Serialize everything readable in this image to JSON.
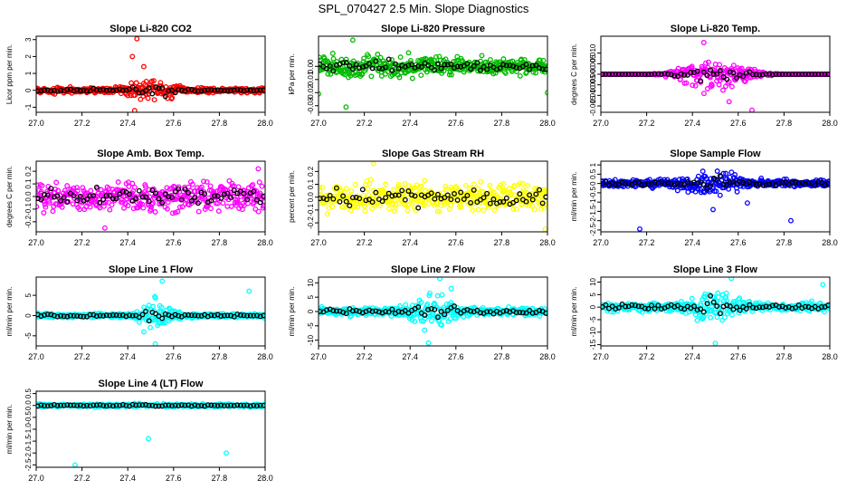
{
  "page": {
    "title": "SPL_070427  2.5 Min. Slope Diagnostics"
  },
  "chart_data": [
    {
      "type": "scatter",
      "title": "Slope Li-820 CO2",
      "ylabel": "Licor ppm per min.",
      "xlabel": "",
      "xlim": [
        27.0,
        28.0
      ],
      "xticks": [
        "27.0",
        "27.2",
        "27.4",
        "27.6",
        "27.8",
        "28.0"
      ],
      "ylim": [
        -1.3,
        3.2
      ],
      "yticks": [
        -1,
        0,
        1,
        2,
        3
      ],
      "ytick_labels": [
        "-1",
        "0",
        "1",
        "2",
        "3"
      ],
      "color": "#ff0000",
      "noise": 0.12,
      "burst": {
        "center": 27.5,
        "width": 0.1,
        "amp": 0.45
      },
      "outliers": [
        {
          "x": 27.44,
          "y": 3.05
        },
        {
          "x": 27.42,
          "y": 2.0
        },
        {
          "x": 27.43,
          "y": -1.2
        },
        {
          "x": 27.47,
          "y": 1.4
        }
      ]
    },
    {
      "type": "scatter",
      "title": "Slope Li-820 Pressure",
      "ylabel": "kPa per min.",
      "xlabel": "",
      "xlim": [
        27.0,
        28.0
      ],
      "xticks": [
        "27.0",
        "27.2",
        "27.4",
        "27.6",
        "27.8",
        "28.0"
      ],
      "ylim": [
        -0.035,
        0.023
      ],
      "yticks": [
        -0.03,
        -0.02,
        -0.01,
        0.0
      ],
      "ytick_labels": [
        "-0.03",
        "-0.02",
        "-0.01",
        "0.00"
      ],
      "color": "#00bb00",
      "noise": 0.004,
      "burst": {
        "center": 27.3,
        "width": 0.3,
        "amp": 0.003
      },
      "outliers": [
        {
          "x": 27.12,
          "y": -0.031
        },
        {
          "x": 27.0,
          "y": -0.021
        },
        {
          "x": 28.0,
          "y": -0.02
        },
        {
          "x": 27.15,
          "y": 0.02
        }
      ]
    },
    {
      "type": "scatter",
      "title": "Slope Li-820 Temp.",
      "ylabel": "degrees C per min.",
      "xlabel": "",
      "xlim": [
        27.0,
        28.0
      ],
      "xticks": [
        "27.0",
        "27.2",
        "27.4",
        "27.6",
        "27.8",
        "28.0"
      ],
      "ylim": [
        -0.018,
        0.018
      ],
      "yticks": [
        -0.015,
        -0.01,
        -0.005,
        0.0,
        0.005,
        0.01
      ],
      "ytick_labels": [
        "-0.015",
        "-0.010",
        "-0.005",
        "0.000",
        "0.005",
        "0.010"
      ],
      "color": "#ff00ff",
      "noise": 0.0,
      "burst": {
        "center": 27.5,
        "width": 0.15,
        "amp": 0.0065
      },
      "outliers": [
        {
          "x": 27.56,
          "y": -0.013
        },
        {
          "x": 27.66,
          "y": -0.017
        },
        {
          "x": 27.45,
          "y": 0.015
        }
      ]
    },
    {
      "type": "scatter",
      "title": "Slope Amb. Box Temp.",
      "ylabel": "degrees C per min.",
      "xlabel": "",
      "xlim": [
        27.0,
        28.0
      ],
      "xticks": [
        "27.0",
        "27.2",
        "27.4",
        "27.6",
        "27.8",
        "28.0"
      ],
      "ylim": [
        -0.28,
        0.28
      ],
      "yticks": [
        -0.2,
        -0.1,
        0.0,
        0.1,
        0.2
      ],
      "ytick_labels": [
        "-0.2",
        "-0.1",
        "0.0",
        "0.1",
        "0.2"
      ],
      "color": "#ff00ff",
      "noise": 0.09,
      "burst": {
        "center": 27.5,
        "width": 0.2,
        "amp": 0.0
      },
      "outliers": [
        {
          "x": 27.3,
          "y": -0.25
        },
        {
          "x": 27.97,
          "y": 0.22
        }
      ]
    },
    {
      "type": "scatter",
      "title": "Slope Gas Stream RH",
      "ylabel": "percent per min.",
      "xlabel": "",
      "xlim": [
        27.0,
        28.0
      ],
      "xticks": [
        "27.0",
        "27.2",
        "27.4",
        "27.6",
        "27.8",
        "28.0"
      ],
      "ylim": [
        -0.27,
        0.28
      ],
      "yticks": [
        -0.2,
        -0.1,
        0.0,
        0.1,
        0.2
      ],
      "ytick_labels": [
        "-0.2",
        "-0.1",
        "0.0",
        "0.1",
        "0.2"
      ],
      "color": "#ffff00",
      "noise": 0.09,
      "burst": {
        "center": 27.5,
        "width": 0.2,
        "amp": 0.0
      },
      "outliers": [
        {
          "x": 27.24,
          "y": 0.26
        },
        {
          "x": 27.99,
          "y": -0.25
        }
      ]
    },
    {
      "type": "scatter",
      "title": "Slope Sample Flow",
      "ylabel": "ml/min per min.",
      "xlabel": "",
      "xlim": [
        27.0,
        28.0
      ],
      "xticks": [
        "27.0",
        "27.2",
        "27.4",
        "27.6",
        "27.8",
        "28.0"
      ],
      "ylim": [
        -2.6,
        1.2
      ],
      "yticks": [
        -2.5,
        -2,
        -1.5,
        -1,
        -0.5,
        0,
        0.5,
        1
      ],
      "ytick_labels": [
        "-2.5",
        "-2",
        "-1.5",
        "-1",
        "-0.5",
        "0",
        "0.5",
        "1"
      ],
      "color": "#0000ff",
      "noise": 0.15,
      "burst": {
        "center": 27.5,
        "width": 0.12,
        "amp": 0.45
      },
      "outliers": [
        {
          "x": 27.17,
          "y": -2.45
        },
        {
          "x": 27.83,
          "y": -2.0
        },
        {
          "x": 27.49,
          "y": -1.4
        },
        {
          "x": 27.64,
          "y": -1.05
        }
      ]
    },
    {
      "type": "scatter",
      "title": "Slope Line 1 Flow",
      "ylabel": "ml/min per min.",
      "xlabel": "",
      "xlim": [
        27.0,
        28.0
      ],
      "xticks": [
        "27.0",
        "27.2",
        "27.4",
        "27.6",
        "27.8",
        "28.0"
      ],
      "ylim": [
        -7.5,
        9.5
      ],
      "yticks": [
        -5,
        0,
        5
      ],
      "ytick_labels": [
        "-5",
        "0",
        "5"
      ],
      "color": "#00ffff",
      "noise": 0.4,
      "burst": {
        "center": 27.53,
        "width": 0.06,
        "amp": 3.5
      },
      "outliers": [
        {
          "x": 27.55,
          "y": 8.5
        },
        {
          "x": 27.52,
          "y": -7.0
        },
        {
          "x": 27.93,
          "y": 6.0
        },
        {
          "x": 27.47,
          "y": -4.0
        }
      ]
    },
    {
      "type": "scatter",
      "title": "Slope Line 2 Flow",
      "ylabel": "ml/min per min.",
      "xlabel": "",
      "xlim": [
        27.0,
        28.0
      ],
      "xticks": [
        "27.0",
        "27.2",
        "27.4",
        "27.6",
        "27.8",
        "28.0"
      ],
      "ylim": [
        -12,
        12
      ],
      "yticks": [
        -10,
        -5,
        0,
        5,
        10
      ],
      "ytick_labels": [
        "-10",
        "-5",
        "0",
        "5",
        "10"
      ],
      "color": "#00ffff",
      "noise": 1.0,
      "burst": {
        "center": 27.5,
        "width": 0.1,
        "amp": 3.5
      },
      "outliers": [
        {
          "x": 27.53,
          "y": 11.5
        },
        {
          "x": 27.48,
          "y": -11
        },
        {
          "x": 27.58,
          "y": 8.0
        }
      ]
    },
    {
      "type": "scatter",
      "title": "Slope Line 3 Flow",
      "ylabel": "ml/min per min.",
      "xlabel": "",
      "xlim": [
        27.0,
        28.0
      ],
      "xticks": [
        "27.0",
        "27.2",
        "27.4",
        "27.6",
        "27.8",
        "28.0"
      ],
      "ylim": [
        -15.5,
        12
      ],
      "yticks": [
        -15,
        -10,
        -5,
        0,
        5,
        10
      ],
      "ytick_labels": [
        "-15",
        "-10",
        "-5",
        "0",
        "5",
        "10"
      ],
      "color": "#00ffff",
      "noise": 1.3,
      "burst": {
        "center": 27.5,
        "width": 0.1,
        "amp": 4.0
      },
      "outliers": [
        {
          "x": 27.5,
          "y": -14.5
        },
        {
          "x": 27.57,
          "y": 11.5
        },
        {
          "x": 27.97,
          "y": 9.0
        }
      ]
    },
    {
      "type": "scatter",
      "title": "Slope Line 4 (LT) Flow",
      "ylabel": "ml/min per min.",
      "xlabel": "",
      "xlim": [
        27.0,
        28.0
      ],
      "xticks": [
        "27.0",
        "27.2",
        "27.4",
        "27.6",
        "27.8",
        "28.0"
      ],
      "ylim": [
        -2.6,
        0.6
      ],
      "yticks": [
        -2.5,
        -2,
        -1.5,
        -1,
        -0.5,
        0,
        0.5
      ],
      "ytick_labels": [
        "-2.5",
        "-2.0",
        "-1.5",
        "-1.0",
        "-0.5",
        "0.0",
        "0.5"
      ],
      "color": "#00ffff",
      "noise": 0.05,
      "burst": {
        "center": 27.5,
        "width": 0.1,
        "amp": 0.0
      },
      "outliers": [
        {
          "x": 27.17,
          "y": -2.5
        },
        {
          "x": 27.83,
          "y": -2.0
        },
        {
          "x": 27.49,
          "y": -1.4
        }
      ]
    }
  ]
}
